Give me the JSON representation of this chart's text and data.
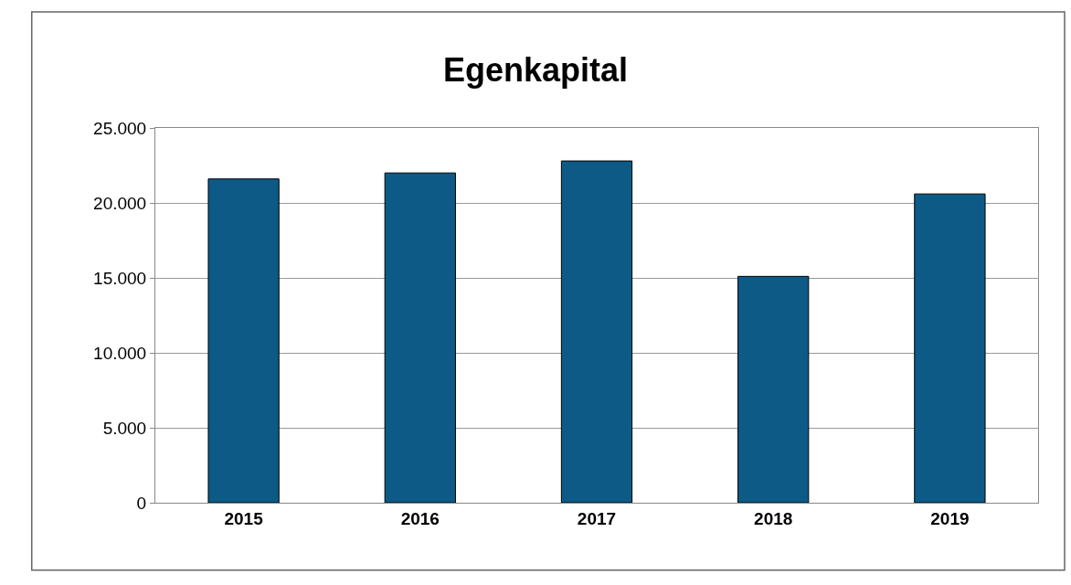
{
  "chart_data": {
    "type": "bar",
    "title": "Egenkapital",
    "categories": [
      "2015",
      "2016",
      "2017",
      "2018",
      "2019"
    ],
    "values": [
      21600,
      22000,
      22800,
      15100,
      20600
    ],
    "color": "#0d5a86",
    "ylim": [
      0,
      25000
    ],
    "yticks": [
      0,
      {
        "value": 5000,
        "label": "5.000"
      },
      {
        "value": 10000,
        "label": "10.000"
      },
      {
        "value": 15000,
        "label": "15.000"
      },
      {
        "value": 20000,
        "label": "20.000"
      },
      {
        "value": 25000,
        "label": "25.000"
      }
    ],
    "grid": "y"
  }
}
